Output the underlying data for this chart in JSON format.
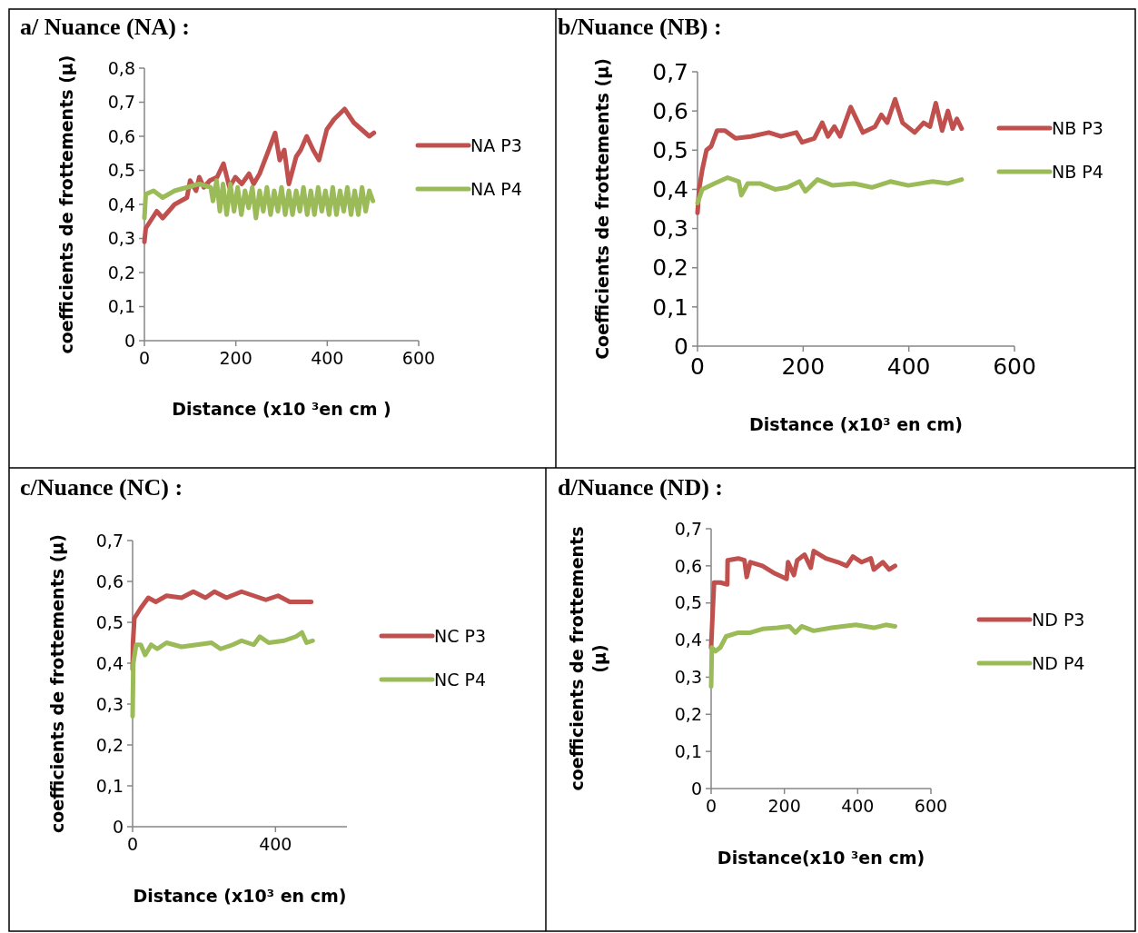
{
  "chart_data": [
    {
      "type": "line",
      "title": "a/ Nuance (NA) :",
      "xlabel": "Distance (x10 ³en cm )",
      "ylabel": "coefficients de frottements (µ)",
      "xlim": [
        0,
        600
      ],
      "xticks": [
        0,
        200,
        400,
        600
      ],
      "ylim": [
        0,
        0.8
      ],
      "yticks": [
        {
          "value": 0,
          "label": "0"
        },
        {
          "value": 0.1,
          "label": "0,1"
        },
        {
          "value": 0.2,
          "label": "0,2"
        },
        {
          "value": 0.3,
          "label": "0,3"
        },
        {
          "value": 0.4,
          "label": "0,4"
        },
        {
          "value": 0.5,
          "label": "0,5"
        },
        {
          "value": 0.6,
          "label": "0,6"
        },
        {
          "value": 0.7,
          "label": "0,7"
        },
        {
          "value": 0.8,
          "label": "0,8"
        }
      ],
      "grid": false,
      "legend": "right",
      "marker": "none",
      "line_style": "solid",
      "series": [
        {
          "name": "NA P3",
          "color": "#c0504d",
          "x": [
            0,
            3,
            27,
            40,
            66,
            93,
            100,
            113,
            120,
            130,
            143,
            159,
            173,
            186,
            199,
            213,
            229,
            239,
            252,
            272,
            286,
            296,
            306,
            316,
            332,
            342,
            355,
            369,
            382,
            399,
            415,
            438,
            458,
            475,
            492,
            502
          ],
          "values": [
            0.29,
            0.33,
            0.38,
            0.36,
            0.4,
            0.42,
            0.47,
            0.44,
            0.48,
            0.45,
            0.47,
            0.48,
            0.52,
            0.45,
            0.48,
            0.46,
            0.49,
            0.46,
            0.49,
            0.56,
            0.61,
            0.53,
            0.56,
            0.46,
            0.54,
            0.56,
            0.6,
            0.56,
            0.53,
            0.62,
            0.65,
            0.68,
            0.64,
            0.62,
            0.6,
            0.61
          ]
        },
        {
          "name": "NA P4",
          "color": "#9bbb59",
          "x": [
            0,
            3,
            20,
            40,
            66,
            93,
            120,
            145,
            150,
            158,
            165,
            172,
            180,
            188,
            196,
            204,
            212,
            220,
            228,
            236,
            244,
            252,
            260,
            268,
            276,
            284,
            292,
            300,
            308,
            316,
            324,
            332,
            340,
            348,
            356,
            364,
            372,
            380,
            388,
            396,
            404,
            412,
            420,
            428,
            436,
            444,
            452,
            460,
            468,
            476,
            484,
            492,
            500
          ],
          "values": [
            0.36,
            0.43,
            0.44,
            0.42,
            0.44,
            0.45,
            0.46,
            0.45,
            0.41,
            0.47,
            0.38,
            0.46,
            0.37,
            0.46,
            0.38,
            0.45,
            0.37,
            0.44,
            0.39,
            0.45,
            0.36,
            0.44,
            0.38,
            0.45,
            0.37,
            0.44,
            0.38,
            0.45,
            0.37,
            0.44,
            0.37,
            0.44,
            0.38,
            0.45,
            0.37,
            0.44,
            0.37,
            0.45,
            0.38,
            0.44,
            0.37,
            0.45,
            0.37,
            0.44,
            0.38,
            0.45,
            0.37,
            0.44,
            0.37,
            0.45,
            0.38,
            0.44,
            0.41
          ]
        }
      ]
    },
    {
      "type": "line",
      "title": "b/Nuance (NB) :",
      "xlabel": "Distance (x10³ en cm)",
      "ylabel": "Coefficients de frottements (µ)",
      "xlim": [
        0,
        600
      ],
      "xticks": [
        0,
        200,
        400,
        600
      ],
      "ylim": [
        0,
        0.7
      ],
      "yticks": [
        {
          "value": 0,
          "label": "0"
        },
        {
          "value": 0.1,
          "label": "0,1"
        },
        {
          "value": 0.2,
          "label": "0,2"
        },
        {
          "value": 0.3,
          "label": "0,3"
        },
        {
          "value": 0.4,
          "label": "0,4"
        },
        {
          "value": 0.5,
          "label": "0,5"
        },
        {
          "value": 0.6,
          "label": "0,6"
        },
        {
          "value": 0.7,
          "label": "0,7"
        }
      ],
      "grid": false,
      "legend": "right",
      "marker": "none",
      "line_style": "solid",
      "series": [
        {
          "name": "NB P3",
          "color": "#c0504d",
          "x": [
            0,
            3,
            9,
            17,
            26,
            37,
            52,
            72,
            101,
            135,
            158,
            187,
            198,
            221,
            236,
            247,
            259,
            270,
            290,
            313,
            336,
            348,
            359,
            374,
            388,
            411,
            428,
            440,
            451,
            463,
            474,
            483,
            491,
            500
          ],
          "values": [
            0.34,
            0.4,
            0.45,
            0.5,
            0.51,
            0.55,
            0.55,
            0.53,
            0.535,
            0.545,
            0.535,
            0.545,
            0.52,
            0.53,
            0.57,
            0.535,
            0.56,
            0.535,
            0.61,
            0.545,
            0.56,
            0.59,
            0.57,
            0.63,
            0.57,
            0.545,
            0.57,
            0.56,
            0.62,
            0.55,
            0.6,
            0.555,
            0.58,
            0.555
          ]
        },
        {
          "name": "NB P4",
          "color": "#9bbb59",
          "x": [
            0,
            9,
            32,
            57,
            78,
            83,
            95,
            118,
            147,
            170,
            193,
            204,
            227,
            256,
            296,
            330,
            365,
            399,
            445,
            474,
            500
          ],
          "values": [
            0.365,
            0.4,
            0.415,
            0.43,
            0.42,
            0.385,
            0.415,
            0.415,
            0.4,
            0.405,
            0.42,
            0.395,
            0.425,
            0.41,
            0.415,
            0.405,
            0.42,
            0.41,
            0.42,
            0.415,
            0.425
          ]
        }
      ]
    },
    {
      "type": "line",
      "title": "c/Nuance (NC) :",
      "xlabel": "Distance (x10³ en cm)",
      "ylabel": "coefficients de frottements (µ)",
      "xlim": [
        0,
        600
      ],
      "xticks": [
        0,
        400
      ],
      "ylim": [
        0,
        0.7
      ],
      "yticks": [
        {
          "value": 0,
          "label": "0"
        },
        {
          "value": 0.1,
          "label": "0,1"
        },
        {
          "value": 0.2,
          "label": "0,2"
        },
        {
          "value": 0.3,
          "label": "0,3"
        },
        {
          "value": 0.4,
          "label": "0,4"
        },
        {
          "value": 0.5,
          "label": "0,5"
        },
        {
          "value": 0.6,
          "label": "0,6"
        },
        {
          "value": 0.7,
          "label": "0,7"
        }
      ],
      "grid": false,
      "legend": "right",
      "marker": "none",
      "line_style": "solid",
      "series": [
        {
          "name": "NC P3",
          "color": "#c0504d",
          "x": [
            0,
            1,
            5,
            23,
            44,
            65,
            95,
            137,
            170,
            204,
            229,
            263,
            305,
            339,
            373,
            407,
            440,
            466,
            483,
            500
          ],
          "values": [
            0.385,
            0.45,
            0.51,
            0.535,
            0.56,
            0.55,
            0.565,
            0.56,
            0.575,
            0.56,
            0.575,
            0.56,
            0.575,
            0.565,
            0.555,
            0.565,
            0.55,
            0.55,
            0.55,
            0.55
          ]
        },
        {
          "name": "NC P4",
          "color": "#9bbb59",
          "x": [
            0,
            2,
            10,
            23,
            35,
            52,
            69,
            95,
            137,
            179,
            221,
            246,
            280,
            305,
            339,
            356,
            381,
            424,
            457,
            474,
            487,
            504
          ],
          "values": [
            0.27,
            0.4,
            0.445,
            0.445,
            0.42,
            0.445,
            0.435,
            0.45,
            0.44,
            0.445,
            0.45,
            0.435,
            0.445,
            0.455,
            0.445,
            0.465,
            0.45,
            0.455,
            0.465,
            0.475,
            0.45,
            0.455
          ]
        }
      ]
    },
    {
      "type": "line",
      "title": "d/Nuance (ND) :",
      "xlabel": "Distance(x10 ³en cm)",
      "ylabel": "coefficients de frottements (µ)",
      "xlim": [
        0,
        600
      ],
      "xticks": [
        0,
        200,
        400,
        600
      ],
      "ylim": [
        0,
        0.7
      ],
      "yticks": [
        {
          "value": 0,
          "label": "0"
        },
        {
          "value": 0.1,
          "label": "0,1"
        },
        {
          "value": 0.2,
          "label": "0,2"
        },
        {
          "value": 0.3,
          "label": "0,3"
        },
        {
          "value": 0.4,
          "label": "0,4"
        },
        {
          "value": 0.5,
          "label": "0,5"
        },
        {
          "value": 0.6,
          "label": "0,6"
        },
        {
          "value": 0.7,
          "label": "0,7"
        }
      ],
      "grid": false,
      "legend": "right",
      "marker": "none",
      "line_style": "solid",
      "series": [
        {
          "name": "ND P3",
          "color": "#c0504d",
          "x": [
            0,
            4,
            8,
            25,
            44,
            45,
            74,
            91,
            97,
            107,
            140,
            173,
            206,
            210,
            226,
            235,
            255,
            272,
            280,
            313,
            346,
            370,
            387,
            411,
            436,
            444,
            469,
            486,
            502
          ],
          "values": [
            0.38,
            0.47,
            0.555,
            0.555,
            0.55,
            0.615,
            0.62,
            0.615,
            0.57,
            0.61,
            0.6,
            0.58,
            0.565,
            0.61,
            0.575,
            0.615,
            0.63,
            0.595,
            0.64,
            0.62,
            0.61,
            0.6,
            0.625,
            0.61,
            0.62,
            0.59,
            0.61,
            0.59,
            0.6
          ]
        },
        {
          "name": "ND P4",
          "color": "#9bbb59",
          "x": [
            0,
            2,
            12,
            25,
            41,
            74,
            107,
            140,
            181,
            214,
            230,
            247,
            280,
            329,
            395,
            444,
            477,
            502
          ],
          "values": [
            0.275,
            0.38,
            0.37,
            0.38,
            0.41,
            0.42,
            0.42,
            0.43,
            0.433,
            0.437,
            0.42,
            0.437,
            0.425,
            0.433,
            0.441,
            0.433,
            0.441,
            0.437
          ]
        }
      ]
    }
  ]
}
